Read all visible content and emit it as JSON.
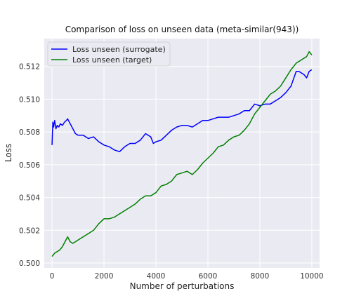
{
  "chart_data": {
    "type": "line",
    "title": "Comparison of loss on unseen data (meta-similar(943))",
    "xlabel": "Number of perturbations",
    "ylabel": "Loss",
    "xlim": [
      -300,
      10300
    ],
    "ylim": [
      0.4997,
      0.5137
    ],
    "xticks": [
      0,
      2000,
      4000,
      6000,
      8000,
      10000
    ],
    "yticks": [
      0.5,
      0.502,
      0.504,
      0.506,
      0.508,
      0.51,
      0.512
    ],
    "grid": true,
    "legend_position": "top-left",
    "series": [
      {
        "name": "Loss unseen (surrogate)",
        "color": "#0000ff",
        "x": [
          0,
          30,
          60,
          100,
          150,
          200,
          260,
          320,
          400,
          480,
          550,
          600,
          700,
          800,
          900,
          1000,
          1100,
          1200,
          1400,
          1600,
          1800,
          2000,
          2200,
          2400,
          2600,
          2800,
          3000,
          3200,
          3400,
          3600,
          3800,
          3900,
          4000,
          4200,
          4400,
          4600,
          4800,
          5000,
          5200,
          5400,
          5600,
          5800,
          6000,
          6200,
          6400,
          6600,
          6800,
          7000,
          7200,
          7400,
          7600,
          7800,
          8000,
          8200,
          8400,
          8600,
          8800,
          9000,
          9200,
          9400,
          9500,
          9600,
          9700,
          9800,
          9900,
          10000
        ],
        "y": [
          0.5072,
          0.5086,
          0.5083,
          0.5087,
          0.5082,
          0.5084,
          0.5083,
          0.5085,
          0.5084,
          0.5086,
          0.5087,
          0.5088,
          0.5085,
          0.5082,
          0.5079,
          0.5078,
          0.5078,
          0.5078,
          0.5076,
          0.5077,
          0.5074,
          0.5072,
          0.5071,
          0.5069,
          0.5068,
          0.5071,
          0.5073,
          0.5073,
          0.5075,
          0.5079,
          0.5077,
          0.5073,
          0.5074,
          0.5075,
          0.5078,
          0.5081,
          0.5083,
          0.5084,
          0.5084,
          0.5083,
          0.5085,
          0.5087,
          0.5087,
          0.5088,
          0.5089,
          0.5089,
          0.5089,
          0.509,
          0.5091,
          0.5093,
          0.5093,
          0.5097,
          0.5096,
          0.5097,
          0.5097,
          0.5099,
          0.5101,
          0.5104,
          0.5108,
          0.5117,
          0.5117,
          0.5116,
          0.5115,
          0.5113,
          0.5117,
          0.5118
        ]
      },
      {
        "name": "Loss unseen (target)",
        "color": "#008000",
        "x": [
          0,
          100,
          200,
          300,
          400,
          500,
          600,
          700,
          800,
          900,
          1000,
          1200,
          1400,
          1600,
          1800,
          2000,
          2200,
          2400,
          2600,
          2800,
          3000,
          3200,
          3400,
          3600,
          3800,
          4000,
          4200,
          4400,
          4600,
          4800,
          5000,
          5200,
          5400,
          5600,
          5800,
          6000,
          6200,
          6400,
          6600,
          6800,
          7000,
          7200,
          7400,
          7600,
          7800,
          8000,
          8200,
          8400,
          8600,
          8800,
          9000,
          9200,
          9400,
          9600,
          9800,
          9900,
          10000
        ],
        "y": [
          0.5004,
          0.5006,
          0.5007,
          0.5008,
          0.501,
          0.5013,
          0.5016,
          0.5013,
          0.5012,
          0.5013,
          0.5014,
          0.5016,
          0.5018,
          0.502,
          0.5024,
          0.5027,
          0.5027,
          0.5028,
          0.503,
          0.5032,
          0.5034,
          0.5036,
          0.5039,
          0.5041,
          0.5041,
          0.5043,
          0.5047,
          0.5048,
          0.505,
          0.5054,
          0.5055,
          0.5056,
          0.5054,
          0.5057,
          0.5061,
          0.5064,
          0.5067,
          0.5071,
          0.5072,
          0.5075,
          0.5077,
          0.5078,
          0.5081,
          0.5085,
          0.5091,
          0.5095,
          0.5099,
          0.5103,
          0.5105,
          0.5108,
          0.5113,
          0.5118,
          0.5122,
          0.5124,
          0.5126,
          0.5129,
          0.5127
        ]
      }
    ]
  }
}
